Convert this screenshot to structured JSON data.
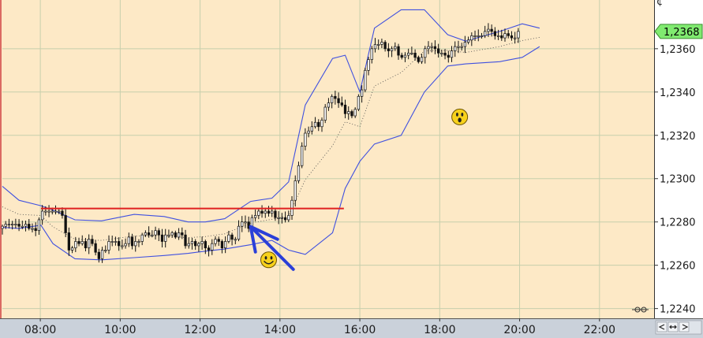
{
  "chart_data": {
    "type": "candlestick",
    "title": "",
    "xlabel": "",
    "ylabel": "",
    "ylim": [
      1.22355,
      1.23825
    ],
    "xlim": [
      "07:03",
      "23:22"
    ],
    "grid": true,
    "x_ticks": [
      "08:00",
      "10:00",
      "12:00",
      "14:00",
      "16:00",
      "18:00",
      "20:00",
      "22:00"
    ],
    "y_ticks": [
      "1,2240",
      "1,2260",
      "1,2280",
      "1,2300",
      "1,2320",
      "1,2340",
      "1,2360"
    ],
    "last_price_label": "1,2368",
    "corner_glyph": "¢",
    "ohlc_series": {
      "start_time": "07:03",
      "bar_minutes": 5,
      "close": [
        1.2278,
        1.2279,
        1.2279,
        1.2279,
        1.2279,
        1.2278,
        1.2278,
        1.2279,
        1.2277,
        1.2277,
        1.2276,
        1.2281,
        1.2285,
        1.2285,
        1.2285,
        1.2285,
        1.2285,
        1.2285,
        1.2283,
        1.2275,
        1.2267,
        1.2268,
        1.2271,
        1.227,
        1.2271,
        1.2268,
        1.2272,
        1.227,
        1.2266,
        1.2263,
        1.2267,
        1.2267,
        1.2271,
        1.2271,
        1.2271,
        1.2269,
        1.2269,
        1.227,
        1.2273,
        1.2269,
        1.2271,
        1.2271,
        1.2274,
        1.2275,
        1.2274,
        1.2274,
        1.2276,
        1.2274,
        1.2271,
        1.2274,
        1.2274,
        1.2275,
        1.2273,
        1.2275,
        1.2274,
        1.2269,
        1.227,
        1.2271,
        1.2269,
        1.227,
        1.2271,
        1.2268,
        1.2267,
        1.227,
        1.2272,
        1.2271,
        1.2268,
        1.2271,
        1.2274,
        1.2272,
        1.2272,
        1.2278,
        1.228,
        1.228,
        1.2277,
        1.2282,
        1.2283,
        1.2285,
        1.2284,
        1.2285,
        1.2284,
        1.2285,
        1.2282,
        1.2282,
        1.2282,
        1.2281,
        1.2283,
        1.229,
        1.2299,
        1.2306,
        1.2315,
        1.2321,
        1.2322,
        1.2324,
        1.2326,
        1.2324,
        1.2327,
        1.2333,
        1.2335,
        1.2338,
        1.2337,
        1.2335,
        1.2334,
        1.233,
        1.2331,
        1.2329,
        1.2332,
        1.2338,
        1.2341,
        1.235,
        1.2355,
        1.236,
        1.2362,
        1.2362,
        1.2363,
        1.236,
        1.2359,
        1.236,
        1.2361,
        1.2357,
        1.2356,
        1.2357,
        1.2358,
        1.2358,
        1.2356,
        1.2354,
        1.2356,
        1.236,
        1.2361,
        1.2361,
        1.236,
        1.2358,
        1.2358,
        1.2357,
        1.2356,
        1.2359,
        1.2361,
        1.2361,
        1.2361,
        1.2363,
        1.2364,
        1.2366,
        1.2366,
        1.2366,
        1.2366,
        1.2368,
        1.2369,
        1.2368,
        1.2366,
        1.2366,
        1.2365,
        1.2367,
        1.2366,
        1.2365,
        1.2365,
        1.2368
      ]
    },
    "bollinger_bands": {
      "middle_shown_as": "dotted",
      "upper": [
        {
          "t": "07:03",
          "y": 1.22965
        },
        {
          "t": "07:28",
          "y": 1.229
        },
        {
          "t": "08:01",
          "y": 1.22875
        },
        {
          "t": "08:19",
          "y": 1.22855
        },
        {
          "t": "08:52",
          "y": 1.2281
        },
        {
          "t": "09:32",
          "y": 1.22805
        },
        {
          "t": "10:21",
          "y": 1.22835
        },
        {
          "t": "11:06",
          "y": 1.22825
        },
        {
          "t": "11:42",
          "y": 1.228
        },
        {
          "t": "12:08",
          "y": 1.228
        },
        {
          "t": "12:37",
          "y": 1.22815
        },
        {
          "t": "13:16",
          "y": 1.22895
        },
        {
          "t": "13:48",
          "y": 1.2291
        },
        {
          "t": "14:13",
          "y": 1.22985
        },
        {
          "t": "14:38",
          "y": 1.2334
        },
        {
          "t": "15:19",
          "y": 1.23555
        },
        {
          "t": "15:38",
          "y": 1.2357
        },
        {
          "t": "16:00",
          "y": 1.234
        },
        {
          "t": "16:22",
          "y": 1.23695
        },
        {
          "t": "17:02",
          "y": 1.2378
        },
        {
          "t": "17:37",
          "y": 1.2378
        },
        {
          "t": "18:12",
          "y": 1.23665
        },
        {
          "t": "18:39",
          "y": 1.23635
        },
        {
          "t": "19:30",
          "y": 1.2368
        },
        {
          "t": "20:04",
          "y": 1.23715
        },
        {
          "t": "20:30",
          "y": 1.23695
        }
      ],
      "lower": [
        {
          "t": "07:03",
          "y": 1.22775
        },
        {
          "t": "07:28",
          "y": 1.2277
        },
        {
          "t": "08:01",
          "y": 1.22785
        },
        {
          "t": "08:19",
          "y": 1.227
        },
        {
          "t": "08:52",
          "y": 1.2263
        },
        {
          "t": "09:32",
          "y": 1.22625
        },
        {
          "t": "10:21",
          "y": 1.22635
        },
        {
          "t": "11:06",
          "y": 1.22645
        },
        {
          "t": "11:42",
          "y": 1.22655
        },
        {
          "t": "12:08",
          "y": 1.22665
        },
        {
          "t": "12:37",
          "y": 1.22675
        },
        {
          "t": "13:16",
          "y": 1.22695
        },
        {
          "t": "13:48",
          "y": 1.22715
        },
        {
          "t": "14:13",
          "y": 1.2267
        },
        {
          "t": "14:38",
          "y": 1.2265
        },
        {
          "t": "15:19",
          "y": 1.2275
        },
        {
          "t": "15:38",
          "y": 1.22955
        },
        {
          "t": "16:00",
          "y": 1.2308
        },
        {
          "t": "16:22",
          "y": 1.2316
        },
        {
          "t": "17:02",
          "y": 1.232
        },
        {
          "t": "17:37",
          "y": 1.234
        },
        {
          "t": "18:12",
          "y": 1.2352
        },
        {
          "t": "18:39",
          "y": 1.2353
        },
        {
          "t": "19:30",
          "y": 1.2354
        },
        {
          "t": "20:04",
          "y": 1.2356
        },
        {
          "t": "20:30",
          "y": 1.2361
        }
      ]
    },
    "annotations": {
      "resistance_line": {
        "price": 1.22862,
        "from": "08:01",
        "to": "15:36",
        "color": "#e02020"
      },
      "arrow": {
        "color": "#2b3fd8",
        "from": {
          "t": "14:20",
          "y": 1.22581
        },
        "to": {
          "t": "13:16",
          "y": 1.22778
        }
      },
      "emoticons": [
        {
          "kind": "smiley-face-icon",
          "t": "13:43",
          "y": 1.22625
        },
        {
          "kind": "surprised-face-icon",
          "t": "18:30",
          "y": 1.23285
        }
      ]
    },
    "colors": {
      "background": "#fde9c6",
      "grid": "#c6cfac",
      "band": "#3f50e0",
      "candle_up": "#ffffff",
      "candle_down": "#111111",
      "axis_bar": "#cad1da",
      "last_label_bg": "#80ea70"
    }
  }
}
